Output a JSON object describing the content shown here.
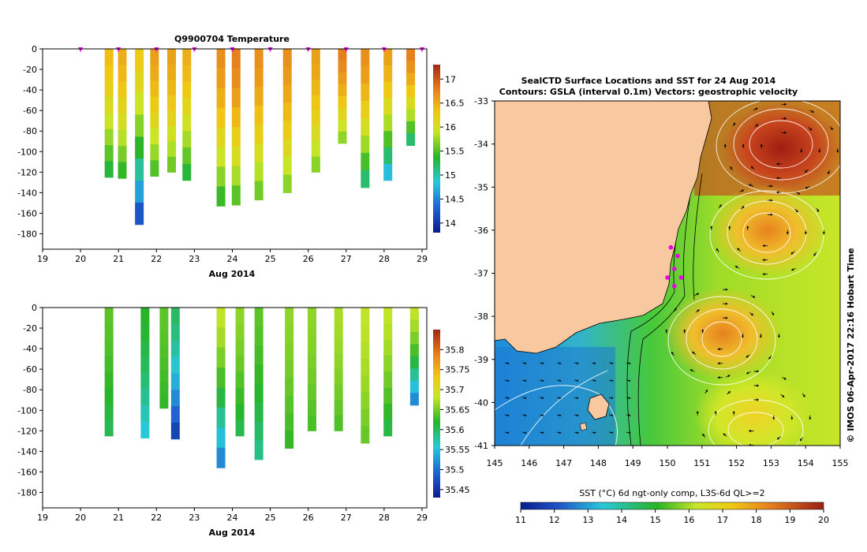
{
  "chart_data": [
    {
      "type": "heatmap",
      "title": "Q9900704  Temperature",
      "xlabel": "Aug 2014",
      "ylabel": "",
      "xlim": [
        19,
        29
      ],
      "ylim": [
        -195,
        0
      ],
      "x_ticks": [
        "19",
        "20",
        "21",
        "22",
        "23",
        "24",
        "25",
        "26",
        "27",
        "28",
        "29"
      ],
      "y_ticks": [
        "0",
        "-20",
        "-40",
        "-60",
        "-80",
        "-100",
        "-120",
        "-140",
        "-160",
        "-180"
      ],
      "colorbar_ticks": [
        "14",
        "14.5",
        "15",
        "15.5",
        "16",
        "16.5",
        "17"
      ],
      "colorbar_range": [
        13.8,
        17.3
      ],
      "marker_days": [
        20,
        21,
        22,
        23,
        24,
        25,
        26,
        27,
        28,
        29
      ],
      "profiles": [
        {
          "day": 20.75,
          "depth": 125,
          "top": 16.4,
          "bottom": 15.2
        },
        {
          "day": 21.1,
          "depth": 126,
          "top": 16.5,
          "bottom": 15.3
        },
        {
          "day": 21.55,
          "depth": 171,
          "top": 16.3,
          "bottom": 14.0
        },
        {
          "day": 21.95,
          "depth": 124,
          "top": 16.6,
          "bottom": 15.4
        },
        {
          "day": 22.4,
          "depth": 120,
          "top": 16.6,
          "bottom": 15.5
        },
        {
          "day": 22.8,
          "depth": 128,
          "top": 16.5,
          "bottom": 15.2
        },
        {
          "day": 23.7,
          "depth": 153,
          "top": 16.7,
          "bottom": 15.3
        },
        {
          "day": 24.1,
          "depth": 152,
          "top": 16.8,
          "bottom": 15.4
        },
        {
          "day": 24.7,
          "depth": 147,
          "top": 16.7,
          "bottom": 15.5
        },
        {
          "day": 25.45,
          "depth": 140,
          "top": 16.7,
          "bottom": 15.6
        },
        {
          "day": 26.2,
          "depth": 120,
          "top": 16.6,
          "bottom": 15.6
        },
        {
          "day": 26.9,
          "depth": 92,
          "top": 16.8,
          "bottom": 15.6
        },
        {
          "day": 27.5,
          "depth": 135,
          "top": 16.7,
          "bottom": 15.0
        },
        {
          "day": 28.1,
          "depth": 128,
          "top": 16.6,
          "bottom": 14.6
        },
        {
          "day": 28.7,
          "depth": 94,
          "top": 16.8,
          "bottom": 15.0
        }
      ]
    },
    {
      "type": "heatmap",
      "title": "",
      "xlabel": "Aug 2014",
      "ylabel": "",
      "xlim": [
        19,
        29
      ],
      "ylim": [
        -195,
        0
      ],
      "x_ticks": [
        "19",
        "20",
        "21",
        "22",
        "23",
        "24",
        "25",
        "26",
        "27",
        "28",
        "29"
      ],
      "y_ticks": [
        "0",
        "-20",
        "-40",
        "-60",
        "-80",
        "-100",
        "-120",
        "-140",
        "-160",
        "-180"
      ],
      "colorbar_ticks": [
        "35.45",
        "35.5",
        "35.55",
        "35.6",
        "35.65",
        "35.7",
        "35.75",
        "35.8"
      ],
      "colorbar_range": [
        35.43,
        35.85
      ],
      "profiles": [
        {
          "day": 20.75,
          "depth": 125,
          "top": 35.64,
          "bottom": 35.6
        },
        {
          "day": 21.7,
          "depth": 127,
          "top": 35.62,
          "bottom": 35.55
        },
        {
          "day": 22.2,
          "depth": 98,
          "top": 35.64,
          "bottom": 35.62
        },
        {
          "day": 22.5,
          "depth": 128,
          "top": 35.6,
          "bottom": 35.45
        },
        {
          "day": 23.7,
          "depth": 156,
          "top": 35.68,
          "bottom": 35.5
        },
        {
          "day": 24.2,
          "depth": 125,
          "top": 35.66,
          "bottom": 35.6
        },
        {
          "day": 24.7,
          "depth": 148,
          "top": 35.64,
          "bottom": 35.58
        },
        {
          "day": 25.5,
          "depth": 137,
          "top": 35.66,
          "bottom": 35.62
        },
        {
          "day": 26.1,
          "depth": 120,
          "top": 35.66,
          "bottom": 35.63
        },
        {
          "day": 26.8,
          "depth": 120,
          "top": 35.67,
          "bottom": 35.63
        },
        {
          "day": 27.5,
          "depth": 132,
          "top": 35.68,
          "bottom": 35.64
        },
        {
          "day": 28.1,
          "depth": 125,
          "top": 35.68,
          "bottom": 35.6
        },
        {
          "day": 28.8,
          "depth": 95,
          "top": 35.68,
          "bottom": 35.5
        }
      ]
    },
    {
      "type": "heatmap",
      "title": "SealCTD Surface Locations and SST for 24 Aug 2014",
      "subtitle": "Contours: GSLA (interval 0.1m) Vectors: geostrophic velocity",
      "xlabel": "",
      "ylabel": "",
      "xlim": [
        145,
        155
      ],
      "ylim": [
        -41,
        -33
      ],
      "x_ticks": [
        "145",
        "146",
        "147",
        "148",
        "149",
        "150",
        "151",
        "152",
        "153",
        "154",
        "155"
      ],
      "y_ticks": [
        "-33",
        "-34",
        "-35",
        "-36",
        "-37",
        "-38",
        "-39",
        "-40",
        "-41"
      ],
      "colorbar_label": "SST (°C) 6d ngt-only comp, L3S-6d QL>=2",
      "colorbar_ticks": [
        "11",
        "12",
        "13",
        "14",
        "15",
        "16",
        "17",
        "18",
        "19",
        "20"
      ],
      "colorbar_range": [
        11,
        20
      ],
      "eddies": [
        {
          "lon": 153.3,
          "lat": -34.1,
          "sst": 19.6
        },
        {
          "lon": 152.9,
          "lat": -36.0,
          "sst": 17.2
        },
        {
          "lon": 151.6,
          "lat": -38.4,
          "sst": 18.0
        },
        {
          "lon": 152.5,
          "lat": -40.3,
          "sst": 16.0
        }
      ],
      "seal_locations": [
        {
          "lon": 150.1,
          "lat": -36.4
        },
        {
          "lon": 150.3,
          "lat": -36.6
        },
        {
          "lon": 150.2,
          "lat": -36.9
        },
        {
          "lon": 150.0,
          "lat": -37.1
        },
        {
          "lon": 150.4,
          "lat": -37.1
        },
        {
          "lon": 150.2,
          "lat": -37.3
        }
      ],
      "side_label": "© IMOS 06-Apr-2017 22:16 Hobart Time"
    }
  ]
}
